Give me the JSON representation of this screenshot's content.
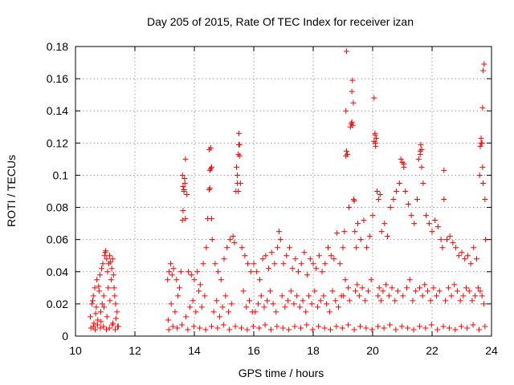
{
  "chart_data": {
    "type": "scatter",
    "title": "Day 205 of 2015, Rate Of TEC Index for receiver izan",
    "xlabel": "GPS time / hours",
    "ylabel": "ROTI / TECUs",
    "xlim": [
      10,
      24
    ],
    "ylim": [
      0,
      0.18
    ],
    "xticks": [
      10,
      12,
      14,
      16,
      18,
      20,
      22,
      24
    ],
    "xtick_labels": [
      "10",
      "12",
      "14",
      "16",
      "18",
      "20",
      "22",
      "24"
    ],
    "yticks": [
      0,
      0.02,
      0.04,
      0.06,
      0.08,
      0.1,
      0.12,
      0.14,
      0.16,
      0.18
    ],
    "ytick_labels": [
      "0",
      "0.02",
      "0.04",
      "0.06",
      "0.08",
      "0.1",
      "0.12",
      "0.14",
      "0.16",
      "0.18"
    ],
    "grid": true,
    "marker": "+",
    "color": "#ff0000",
    "series": [
      {
        "name": "ROTI",
        "x": [
          10.5,
          10.55,
          10.6,
          10.62,
          10.65,
          10.7,
          10.72,
          10.75,
          10.8,
          10.82,
          10.85,
          10.88,
          10.9,
          10.92,
          10.95,
          10.98,
          11.0,
          11.02,
          11.05,
          11.08,
          11.1,
          11.12,
          11.15,
          11.18,
          11.2,
          11.22,
          11.25,
          11.28,
          11.3,
          11.32,
          11.35,
          11.4,
          10.58,
          10.68,
          10.78,
          10.86,
          10.96,
          11.06,
          11.16,
          11.26,
          11.36,
          11.42,
          13.1,
          13.15,
          13.2,
          13.25,
          13.3,
          13.4,
          13.5,
          13.55,
          13.6,
          13.62,
          13.65,
          13.68,
          13.7,
          13.75,
          13.8,
          13.9,
          14.0,
          14.1,
          14.2,
          14.3,
          14.4,
          14.45,
          14.5,
          14.52,
          14.55,
          14.58,
          14.6,
          14.7,
          14.8,
          14.9,
          15.0,
          15.1,
          15.2,
          15.3,
          15.35,
          15.4,
          15.45,
          15.48,
          15.5,
          15.52,
          15.55,
          15.6,
          15.7,
          15.8,
          15.9,
          13.12,
          13.22,
          13.35,
          13.45,
          13.72,
          13.85,
          13.95,
          14.05,
          14.15,
          14.25,
          14.35,
          14.65,
          14.75,
          14.85,
          14.95,
          15.05,
          15.15,
          15.25,
          15.65,
          15.75,
          15.85,
          15.95,
          16.0,
          16.1,
          16.2,
          16.3,
          16.4,
          16.5,
          16.6,
          16.7,
          16.8,
          16.85,
          16.9,
          17.0,
          17.1,
          17.2,
          17.3,
          17.4,
          17.5,
          17.6,
          17.7,
          17.8,
          17.9,
          18.0,
          18.1,
          18.2,
          18.3,
          18.4,
          18.5,
          18.6,
          18.7,
          18.8,
          18.9,
          16.05,
          16.15,
          16.25,
          16.35,
          16.45,
          16.55,
          16.65,
          16.75,
          16.95,
          17.05,
          17.15,
          17.25,
          17.35,
          17.45,
          17.55,
          17.65,
          17.75,
          17.85,
          17.95,
          18.05,
          18.15,
          18.25,
          18.35,
          18.45,
          18.55,
          18.65,
          18.75,
          18.85,
          18.95,
          19.0,
          19.05,
          19.1,
          19.12,
          19.15,
          19.2,
          19.25,
          19.28,
          19.3,
          19.32,
          19.35,
          19.38,
          19.4,
          19.45,
          19.5,
          19.6,
          19.7,
          19.8,
          19.9,
          20.0,
          20.05,
          20.08,
          20.1,
          20.12,
          20.15,
          20.2,
          20.25,
          20.3,
          20.4,
          20.5,
          20.6,
          20.7,
          20.8,
          20.9,
          20.95,
          21.0,
          21.05,
          21.1,
          21.2,
          21.3,
          21.4,
          21.5,
          21.55,
          21.6,
          21.62,
          21.65,
          21.7,
          21.8,
          21.9,
          22.0,
          22.1,
          22.2,
          22.3,
          22.35,
          22.4,
          22.5,
          22.6,
          22.7,
          22.8,
          22.9,
          23.0,
          23.1,
          23.2,
          23.3,
          23.4,
          23.5,
          23.6,
          23.65,
          23.7,
          23.72,
          23.75,
          23.78,
          23.8,
          19.02,
          19.08,
          19.18,
          19.22,
          19.42,
          19.48,
          19.55,
          19.65,
          19.75,
          19.85,
          19.95,
          20.18,
          20.22,
          20.28,
          20.35,
          20.45,
          20.55,
          20.65,
          20.75,
          20.85,
          21.02,
          21.15,
          21.25,
          21.35,
          21.45,
          21.58,
          21.68,
          21.75,
          21.85,
          21.95,
          22.05,
          22.15,
          22.25,
          22.45,
          22.55,
          22.65,
          22.75,
          22.85,
          22.95,
          23.05,
          23.15,
          23.25,
          23.35,
          23.45,
          23.55,
          23.62,
          23.68,
          23.74,
          10.52,
          10.6,
          10.66,
          10.74,
          10.84,
          10.94,
          11.04,
          11.14,
          11.24,
          11.34,
          11.44,
          13.14,
          13.28,
          13.42,
          13.58,
          13.78,
          13.98,
          14.18,
          14.38,
          14.58,
          14.78,
          14.98,
          15.18,
          15.38,
          15.58,
          15.78,
          15.98,
          16.18,
          16.38,
          16.58,
          16.78,
          16.98,
          17.18,
          17.38,
          17.58,
          17.78,
          17.98,
          18.18,
          18.38,
          18.58,
          18.78,
          18.98,
          19.18,
          19.38,
          19.58,
          19.78,
          19.98,
          20.18,
          20.38,
          20.58,
          20.78,
          20.98,
          21.18,
          21.38,
          21.58,
          21.78,
          21.98,
          22.18,
          22.38,
          22.58,
          22.78,
          22.98,
          23.18,
          23.38,
          23.58,
          23.78,
          13.6,
          13.62,
          13.65,
          13.67,
          13.7,
          14.5,
          14.52,
          14.55,
          14.58,
          15.42,
          15.45,
          15.48,
          15.5,
          15.52,
          19.1,
          19.12,
          19.3,
          19.33,
          19.36,
          20.05,
          20.08,
          20.1,
          21.0,
          21.05,
          21.6,
          21.65,
          22.4,
          23.62,
          23.65,
          23.68,
          23.7,
          23.72
        ],
        "y": [
          0.012,
          0.02,
          0.025,
          0.008,
          0.03,
          0.018,
          0.035,
          0.01,
          0.028,
          0.038,
          0.015,
          0.042,
          0.02,
          0.045,
          0.025,
          0.05,
          0.052,
          0.053,
          0.048,
          0.04,
          0.03,
          0.045,
          0.05,
          0.046,
          0.035,
          0.042,
          0.048,
          0.038,
          0.03,
          0.025,
          0.02,
          0.015,
          0.022,
          0.014,
          0.031,
          0.009,
          0.018,
          0.012,
          0.022,
          0.008,
          0.011,
          0.006,
          0.035,
          0.04,
          0.045,
          0.038,
          0.042,
          0.035,
          0.03,
          0.04,
          0.072,
          0.078,
          0.09,
          0.095,
          0.11,
          0.088,
          0.04,
          0.038,
          0.035,
          0.04,
          0.032,
          0.045,
          0.055,
          0.073,
          0.091,
          0.103,
          0.117,
          0.105,
          0.06,
          0.045,
          0.04,
          0.035,
          0.048,
          0.055,
          0.06,
          0.062,
          0.058,
          0.09,
          0.1,
          0.113,
          0.126,
          0.119,
          0.095,
          0.055,
          0.05,
          0.045,
          0.04,
          0.01,
          0.02,
          0.015,
          0.025,
          0.012,
          0.018,
          0.022,
          0.015,
          0.028,
          0.018,
          0.025,
          0.015,
          0.022,
          0.012,
          0.018,
          0.025,
          0.015,
          0.02,
          0.028,
          0.018,
          0.022,
          0.015,
          0.045,
          0.04,
          0.035,
          0.048,
          0.05,
          0.042,
          0.052,
          0.045,
          0.055,
          0.065,
          0.06,
          0.045,
          0.05,
          0.055,
          0.042,
          0.048,
          0.04,
          0.045,
          0.052,
          0.038,
          0.048,
          0.045,
          0.042,
          0.05,
          0.04,
          0.045,
          0.055,
          0.05,
          0.048,
          0.064,
          0.045,
          0.015,
          0.02,
          0.025,
          0.018,
          0.022,
          0.028,
          0.02,
          0.015,
          0.025,
          0.018,
          0.022,
          0.028,
          0.02,
          0.025,
          0.018,
          0.022,
          0.015,
          0.025,
          0.02,
          0.028,
          0.018,
          0.022,
          0.025,
          0.02,
          0.015,
          0.028,
          0.022,
          0.018,
          0.025,
          0.055,
          0.065,
          0.14,
          0.177,
          0.113,
          0.08,
          0.13,
          0.132,
          0.152,
          0.159,
          0.145,
          0.084,
          0.065,
          0.055,
          0.07,
          0.06,
          0.072,
          0.055,
          0.062,
          0.075,
          0.148,
          0.126,
          0.12,
          0.123,
          0.09,
          0.085,
          0.088,
          0.065,
          0.07,
          0.062,
          0.08,
          0.085,
          0.09,
          0.095,
          0.11,
          0.108,
          0.105,
          0.09,
          0.082,
          0.075,
          0.07,
          0.085,
          0.11,
          0.115,
          0.119,
          0.105,
          0.095,
          0.075,
          0.07,
          0.065,
          0.072,
          0.068,
          0.06,
          0.055,
          0.085,
          0.06,
          0.062,
          0.058,
          0.055,
          0.05,
          0.052,
          0.048,
          0.05,
          0.045,
          0.055,
          0.048,
          0.1,
          0.12,
          0.142,
          0.165,
          0.169,
          0.085,
          0.06,
          0.025,
          0.035,
          0.03,
          0.022,
          0.028,
          0.032,
          0.025,
          0.03,
          0.022,
          0.028,
          0.035,
          0.025,
          0.03,
          0.022,
          0.028,
          0.032,
          0.025,
          0.03,
          0.022,
          0.028,
          0.025,
          0.03,
          0.035,
          0.022,
          0.028,
          0.03,
          0.025,
          0.032,
          0.028,
          0.022,
          0.03,
          0.025,
          0.028,
          0.022,
          0.03,
          0.025,
          0.032,
          0.028,
          0.022,
          0.025,
          0.03,
          0.028,
          0.022,
          0.025,
          0.03,
          0.028,
          0.025,
          0.02,
          0.005,
          0.006,
          0.004,
          0.007,
          0.005,
          0.006,
          0.004,
          0.005,
          0.007,
          0.004,
          0.006,
          0.004,
          0.006,
          0.005,
          0.007,
          0.004,
          0.006,
          0.005,
          0.004,
          0.006,
          0.005,
          0.007,
          0.004,
          0.006,
          0.005,
          0.004,
          0.006,
          0.005,
          0.007,
          0.004,
          0.006,
          0.005,
          0.004,
          0.006,
          0.005,
          0.007,
          0.004,
          0.006,
          0.005,
          0.004,
          0.006,
          0.005,
          0.007,
          0.004,
          0.006,
          0.005,
          0.004,
          0.006,
          0.005,
          0.007,
          0.004,
          0.006,
          0.005,
          0.004,
          0.006,
          0.005,
          0.007,
          0.004,
          0.006,
          0.005,
          0.004,
          0.006,
          0.005,
          0.007,
          0.004,
          0.006,
          0.1,
          0.093,
          0.091,
          0.098,
          0.073,
          0.116,
          0.092,
          0.104,
          0.073,
          0.105,
          0.095,
          0.09,
          0.119,
          0.112,
          0.112,
          0.115,
          0.133,
          0.131,
          0.085,
          0.121,
          0.125,
          0.118,
          0.108,
          0.107,
          0.113,
          0.116,
          0.103,
          0.118,
          0.123,
          0.12,
          0.105,
          0.095
        ]
      }
    ]
  }
}
